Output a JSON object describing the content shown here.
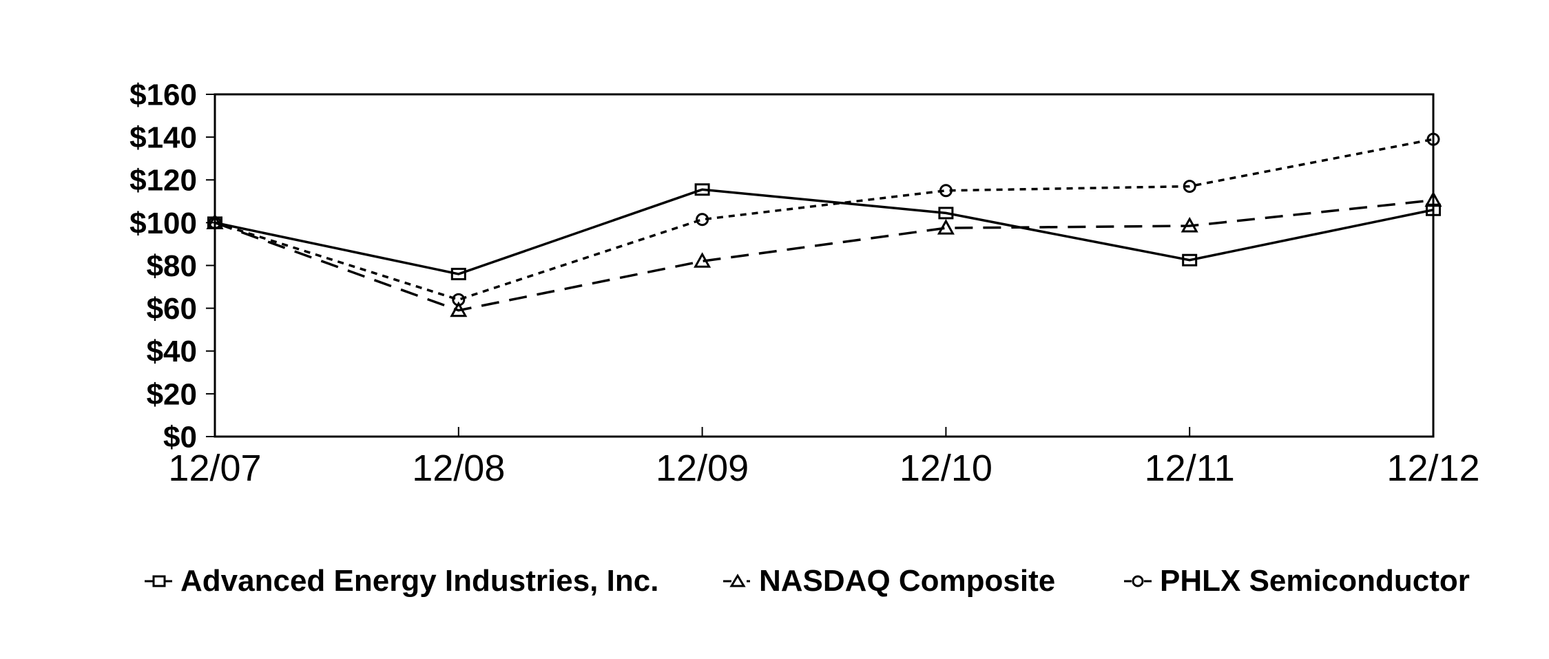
{
  "page": {
    "background_color": "#ffffff",
    "accent_color": "#000000"
  },
  "chart_data": {
    "type": "line",
    "title": "",
    "xlabel": "",
    "ylabel": "",
    "x_labels": [
      "12/07",
      "12/08",
      "12/09",
      "12/10",
      "12/11",
      "12/12"
    ],
    "y_tick_labels": [
      "$0",
      "$20",
      "$40",
      "$60",
      "$80",
      "$100",
      "$120",
      "$140",
      "$160"
    ],
    "ylim": [
      0,
      160
    ],
    "ytick_step": 20,
    "grid": false,
    "legend_position": "bottom",
    "line_color": "#000000",
    "series": [
      {
        "name": "Advanced Energy Industries, Inc.",
        "marker": "square",
        "line_style": "solid",
        "values": [
          100,
          76,
          115.5,
          104.5,
          82.5,
          106
        ]
      },
      {
        "name": "NASDAQ Composite",
        "marker": "triangle",
        "line_style": "long-dash",
        "values": [
          100,
          59,
          82,
          97.5,
          98.5,
          110.5
        ]
      },
      {
        "name": "PHLX Semiconductor",
        "marker": "circle",
        "line_style": "short-dash",
        "values": [
          100,
          64,
          101.5,
          115,
          117,
          139
        ]
      }
    ]
  }
}
